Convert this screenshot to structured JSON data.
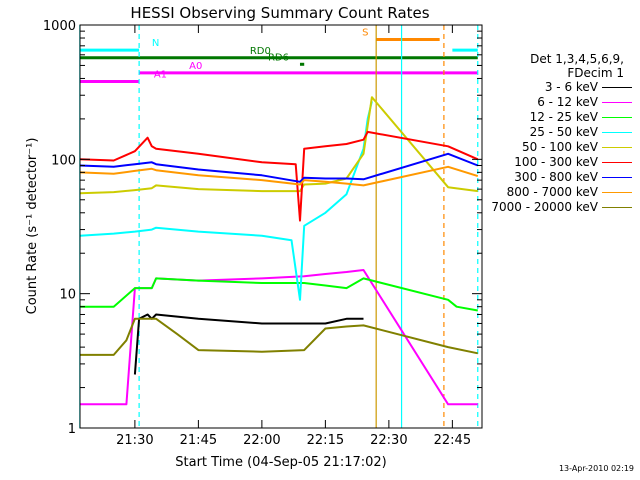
{
  "chart_data": {
    "type": "line",
    "title": "HESSI Observing Summary Count Rates",
    "xlabel": "Start Time (04-Sep-05 21:17:02)",
    "ylabel": "Count Rate (s⁻¹ detector⁻¹)",
    "yscale": "log",
    "ylim": [
      1,
      1000
    ],
    "xlim": [
      "21:17:02",
      "22:52:00"
    ],
    "xticks": [
      "21:30",
      "21:45",
      "22:00",
      "22:15",
      "22:30",
      "22:45"
    ],
    "yticks": [
      "1",
      "10",
      "100",
      "1000"
    ],
    "grid": false,
    "legend_position": "right",
    "legend_header": [
      "Det 1,3,4,5,6,9,",
      "FDecim 1"
    ],
    "series": [
      {
        "name": "3 - 6 keV",
        "color": "#000000",
        "x": [
          "21:30",
          "21:31",
          "21:33",
          "21:34",
          "21:35",
          "21:45",
          "22:00",
          "22:10",
          "22:15",
          "22:20",
          "22:24"
        ],
        "y": [
          2.5,
          6.5,
          7.0,
          6.5,
          7.0,
          6.5,
          6.0,
          6.0,
          6.0,
          6.5,
          6.5
        ]
      },
      {
        "name": "6 - 12 keV",
        "color": "#ff00ff",
        "x": [
          "21:17",
          "21:28",
          "21:30",
          "21:34",
          "21:35",
          "21:45",
          "22:00",
          "22:10",
          "22:15",
          "22:20",
          "22:24",
          "22:44",
          "22:46",
          "22:51"
        ],
        "y": [
          1.5,
          1.5,
          11,
          11,
          13,
          12.5,
          13,
          13.5,
          14,
          14.5,
          15,
          1.5,
          1.5,
          1.5
        ]
      },
      {
        "name": "12 - 25 keV",
        "color": "#00ff00",
        "x": [
          "21:17",
          "21:25",
          "21:30",
          "21:34",
          "21:35",
          "21:45",
          "22:00",
          "22:10",
          "22:15",
          "22:20",
          "22:24",
          "22:44",
          "22:46",
          "22:51"
        ],
        "y": [
          8,
          8,
          11,
          11,
          13,
          12.5,
          12,
          12,
          11.5,
          11,
          13,
          9,
          8,
          7.5
        ]
      },
      {
        "name": "25 - 50 keV",
        "color": "#00ffff",
        "x": [
          "21:17",
          "21:25",
          "21:30",
          "21:34",
          "21:35",
          "21:45",
          "22:00",
          "22:07",
          "22:09",
          "22:10",
          "22:15",
          "22:20",
          "22:24",
          "22:25",
          "22:26"
        ],
        "y": [
          27,
          28,
          29,
          30,
          31,
          29,
          27,
          25,
          9,
          32,
          40,
          55,
          120,
          200,
          270
        ]
      },
      {
        "name": "50 - 100 keV",
        "color": "#cccc00",
        "x": [
          "21:17",
          "21:25",
          "21:30",
          "21:34",
          "21:35",
          "21:45",
          "22:00",
          "22:09",
          "22:10",
          "22:15",
          "22:20",
          "22:24",
          "22:26",
          "22:44",
          "22:51"
        ],
        "y": [
          56,
          57,
          59,
          61,
          64,
          60,
          58,
          58,
          65,
          66,
          72,
          110,
          290,
          62,
          58
        ]
      },
      {
        "name": "100 - 300 keV",
        "color": "#ff0000",
        "x": [
          "21:17",
          "21:25",
          "21:30",
          "21:33",
          "21:34",
          "21:35",
          "21:45",
          "22:00",
          "22:08",
          "22:09",
          "22:10",
          "22:15",
          "22:20",
          "22:24",
          "22:25",
          "22:44",
          "22:51"
        ],
        "y": [
          100,
          98,
          115,
          145,
          125,
          120,
          110,
          95,
          92,
          35,
          120,
          125,
          130,
          140,
          160,
          125,
          100
        ]
      },
      {
        "name": "300 - 800 keV",
        "color": "#0000ff",
        "x": [
          "21:17",
          "21:25",
          "21:30",
          "21:34",
          "21:35",
          "21:45",
          "22:00",
          "22:09",
          "22:10",
          "22:15",
          "22:20",
          "22:24",
          "22:44",
          "22:51"
        ],
        "y": [
          90,
          88,
          92,
          95,
          92,
          84,
          76,
          68,
          73,
          72,
          72,
          71,
          110,
          90
        ]
      },
      {
        "name": "800 - 7000 keV",
        "color": "#ff9900",
        "x": [
          "21:17",
          "21:25",
          "21:30",
          "21:34",
          "21:35",
          "21:45",
          "22:00",
          "22:09",
          "22:10",
          "22:15",
          "22:20",
          "22:24",
          "22:44",
          "22:51"
        ],
        "y": [
          80,
          78,
          82,
          85,
          83,
          76,
          70,
          65,
          70,
          68,
          66,
          64,
          88,
          75
        ]
      },
      {
        "name": "7000 - 20000 keV",
        "color": "#808000",
        "x": [
          "21:17",
          "21:25",
          "21:28",
          "21:30",
          "21:35",
          "21:40",
          "21:45",
          "22:00",
          "22:10",
          "22:15",
          "22:20",
          "22:24",
          "22:44",
          "22:51"
        ],
        "y": [
          3.5,
          3.5,
          4.5,
          6.5,
          6.5,
          5.0,
          3.8,
          3.7,
          3.8,
          5.5,
          5.7,
          5.8,
          4.0,
          3.6
        ]
      }
    ],
    "flag_bars": [
      {
        "label": "N",
        "color": "#00ffff",
        "segments": [
          [
            "21:17",
            "21:31"
          ],
          [
            "22:45",
            "22:51"
          ]
        ],
        "y": 650
      },
      {
        "label": "RD0",
        "color": "#007700",
        "segments": [
          [
            "21:17",
            "22:51"
          ]
        ],
        "y": 570
      },
      {
        "label": "RD6",
        "color": "#007700",
        "segments": [
          [
            "22:09",
            "22:10"
          ]
        ],
        "y": 510
      },
      {
        "label": "S",
        "color": "#ff8800",
        "segments": [
          [
            "22:27",
            "22:42"
          ]
        ],
        "y": 780
      },
      {
        "label": "A0",
        "color": "#ff00ff",
        "segments": [
          [
            "21:31",
            "22:51"
          ]
        ],
        "y": 440
      },
      {
        "label": "A1",
        "color": "#ff00ff",
        "segments": [
          [
            "21:17",
            "21:31"
          ]
        ],
        "y": 380
      }
    ],
    "vertical_markers": [
      {
        "time": "21:17",
        "color": "#00ffff",
        "style": "solid"
      },
      {
        "time": "21:31",
        "color": "#00ffff",
        "style": "dashed"
      },
      {
        "time": "22:27",
        "color": "#cc9900",
        "style": "solid"
      },
      {
        "time": "22:33",
        "color": "#00ffff",
        "style": "solid"
      },
      {
        "time": "22:43",
        "color": "#ff8800",
        "style": "dashed"
      },
      {
        "time": "22:51",
        "color": "#00ffff",
        "style": "dashed"
      }
    ],
    "footer": "13-Apr-2010 02:19"
  }
}
